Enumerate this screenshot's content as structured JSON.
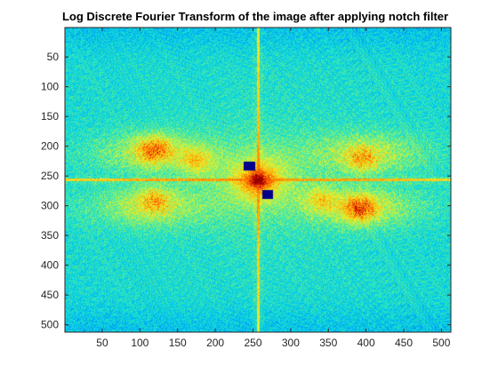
{
  "chart_data": {
    "type": "heatmap",
    "title": "Log Discrete Fourier Transform of the image after applying notch filter",
    "xlabel": "",
    "ylabel": "",
    "image_size": [
      512,
      512
    ],
    "xlim": [
      0.5,
      512.5
    ],
    "ylim": [
      0.5,
      512.5
    ],
    "y_direction": "reverse",
    "colormap": "parula",
    "color_range": [
      0,
      1
    ],
    "x_ticks": [
      50,
      100,
      150,
      200,
      250,
      300,
      350,
      400,
      450,
      500
    ],
    "y_ticks": [
      50,
      100,
      150,
      200,
      250,
      300,
      350,
      400,
      450,
      500
    ],
    "x_tick_labels": [
      "50",
      "100",
      "150",
      "200",
      "250",
      "300",
      "350",
      "400",
      "450",
      "500"
    ],
    "y_tick_labels": [
      "50",
      "100",
      "150",
      "200",
      "250",
      "300",
      "350",
      "400",
      "450",
      "500"
    ],
    "spectrum_center": [
      257,
      257
    ],
    "cross_lines": {
      "vertical_x": 257,
      "horizontal_y": 257,
      "level": 0.72
    },
    "bright_blobs": [
      {
        "x": 120,
        "y": 205,
        "level": 0.82
      },
      {
        "x": 175,
        "y": 225,
        "level": 0.72
      },
      {
        "x": 120,
        "y": 290,
        "level": 0.72
      },
      {
        "x": 395,
        "y": 222,
        "level": 0.72
      },
      {
        "x": 392,
        "y": 305,
        "level": 0.85
      },
      {
        "x": 340,
        "y": 290,
        "level": 0.7
      }
    ],
    "notch_regions": [
      {
        "x_range": [
          238,
          253
        ],
        "y_range": [
          226,
          241
        ],
        "level": 0.0
      },
      {
        "x_range": [
          262,
          277
        ],
        "y_range": [
          274,
          289
        ],
        "level": 0.0
      }
    ],
    "grid": false,
    "legend": "none"
  }
}
